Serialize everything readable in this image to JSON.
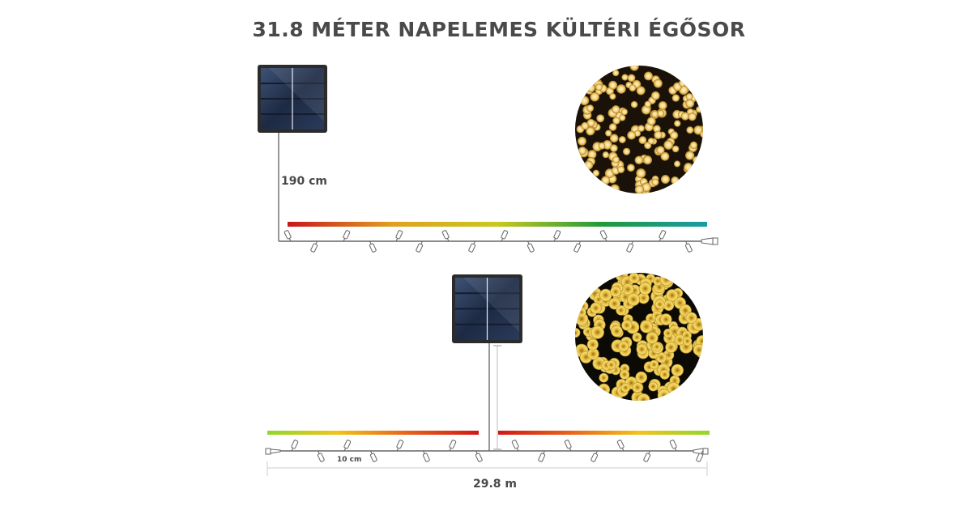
{
  "title": "31.8 MÉTER NAPELEMES KÜLTÉRI ÉGŐSOR",
  "top_diagram": {
    "cable_label": "190 cm",
    "gradient_colors": [
      "#c8161d",
      "#e0a020",
      "#c8c820",
      "#1f9a3a",
      "#1a9aa8"
    ],
    "light_color": "warm-white"
  },
  "bottom_diagram": {
    "spacing_label": "10 cm",
    "length_label": "29.8 m",
    "left_gradient_colors": [
      "#8fd82a",
      "#f2c21a",
      "#e8601a",
      "#d01818"
    ],
    "right_gradient_colors": [
      "#d01818",
      "#e8601a",
      "#f2c21a",
      "#8fd82a"
    ],
    "light_color": "yellow"
  },
  "icons": [
    "solar-panel-icon",
    "led-bulb-icon",
    "cable-connector-icon"
  ]
}
